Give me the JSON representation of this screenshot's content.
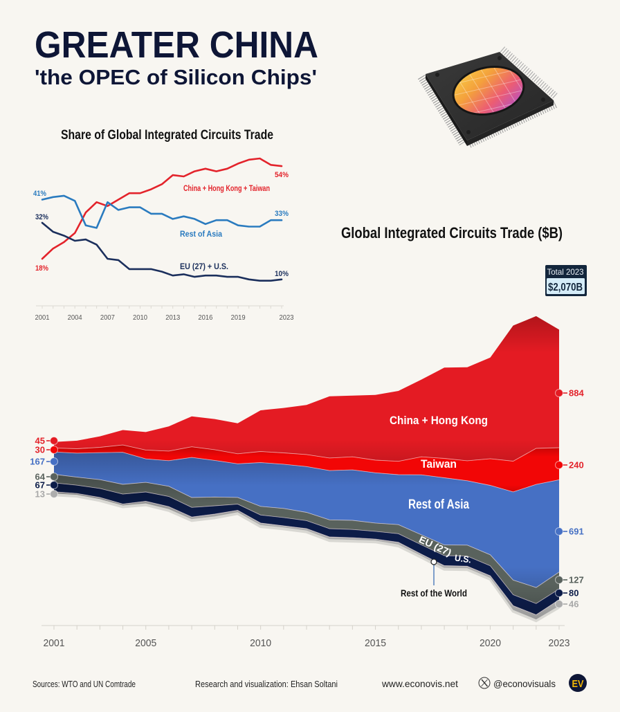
{
  "header": {
    "title": "GREATER CHINA",
    "subtitle": "'the OPEC of Silicon Chips'"
  },
  "chart_data": [
    {
      "type": "line",
      "title": "Share of Global Integrated Circuits Trade",
      "unit": "%",
      "xlabel": "",
      "ylabel": "",
      "ylim": [
        0,
        60
      ],
      "grid": false,
      "x": [
        2001,
        2002,
        2003,
        2004,
        2005,
        2006,
        2007,
        2008,
        2009,
        2010,
        2011,
        2012,
        2013,
        2014,
        2015,
        2016,
        2017,
        2018,
        2019,
        2020,
        2021,
        2022,
        2023
      ],
      "x_tick_years": [
        2001,
        2004,
        2007,
        2010,
        2013,
        2016,
        2019,
        2023
      ],
      "x_tick_labels": [
        "2001",
        "2004",
        "2007",
        "2010",
        "2013",
        "2016",
        "2019",
        "2023"
      ],
      "series": [
        {
          "name": "China + Hong Kong + Taiwan",
          "color": "#e3232b",
          "start_label": "18%",
          "end_label": "54%",
          "values": [
            18,
            22,
            24.5,
            28,
            36,
            40,
            38.5,
            41,
            43.5,
            43.5,
            45,
            47,
            50.5,
            50,
            52,
            53,
            52,
            53,
            55,
            56.5,
            57,
            54.5,
            54
          ]
        },
        {
          "name": "Rest of Asia",
          "color": "#2a7bbf",
          "start_label": "41%",
          "end_label": "33%",
          "values": [
            41,
            42,
            42.5,
            40.5,
            31,
            30,
            40,
            37,
            38,
            38,
            35.5,
            35.5,
            33.5,
            34.5,
            33.5,
            31.5,
            33,
            33,
            31,
            30.5,
            30.5,
            33,
            33
          ]
        },
        {
          "name": "EU (27) + U.S.",
          "color": "#1b2f5c",
          "start_label": "32%",
          "end_label": "10%",
          "values": [
            32,
            28.5,
            27,
            25,
            25.5,
            23.5,
            18,
            17.5,
            14,
            14,
            14,
            13,
            11.5,
            12,
            11,
            11.5,
            11.5,
            11,
            11,
            10,
            9.5,
            9.5,
            10
          ]
        }
      ]
    },
    {
      "type": "area",
      "stacking": "centered",
      "title": "Global Integrated Circuits Trade ($B)",
      "unit": "$B",
      "xlabel": "",
      "ylabel": "",
      "grid": false,
      "x": [
        2001,
        2002,
        2003,
        2004,
        2005,
        2006,
        2007,
        2008,
        2009,
        2010,
        2011,
        2012,
        2013,
        2014,
        2015,
        2016,
        2017,
        2018,
        2019,
        2020,
        2021,
        2022,
        2023
      ],
      "x_tick_years": [
        2001,
        2005,
        2010,
        2015,
        2020,
        2023
      ],
      "x_tick_labels": [
        "2001",
        "2005",
        "2010",
        "2015",
        "2020",
        "2023"
      ],
      "total_label": "Total 2023",
      "total_value": "$2,070B",
      "annotation": "Rest of the World",
      "series": [
        {
          "name": "China + Hong Kong",
          "label": "China + Hong Kong",
          "color": "#e41b23",
          "label_color": "#e3232b",
          "values": [
            45,
            60,
            82,
            112,
            135,
            185,
            228,
            230,
            228,
            308,
            336,
            371,
            462,
            458,
            488,
            527,
            578,
            680,
            700,
            757,
            1016,
            990,
            884
          ]
        },
        {
          "name": "Taiwan",
          "label": "Taiwan",
          "color": "#f20606",
          "label_color": "#e3232b",
          "values": [
            30,
            33,
            40,
            55,
            66,
            72,
            80,
            80,
            75,
            83,
            85,
            90,
            94,
            98,
            95,
            100,
            135,
            145,
            150,
            200,
            230,
            270,
            240
          ]
        },
        {
          "name": "Rest of Asia",
          "label": "Rest of Asia",
          "color": "#4670c4",
          "label_color": "#4670c4",
          "values": [
            167,
            180,
            202,
            240,
            176,
            192,
            300,
            274,
            252,
            328,
            331,
            343,
            369,
            378,
            376,
            374,
            449,
            503,
            482,
            520,
            660,
            772,
            691
          ]
        },
        {
          "name": "EU (27)",
          "label": "EU (27)",
          "color": "#59625d",
          "label_color": "#59625d",
          "values": [
            64,
            60,
            66,
            73,
            72,
            76,
            74,
            66,
            50,
            65,
            68,
            62,
            66,
            68,
            62,
            68,
            75,
            80,
            82,
            82,
            110,
            120,
            127
          ]
        },
        {
          "name": "U.S.",
          "label": "U.S.",
          "color": "#0c1c48",
          "label_color": "#0c1c48",
          "values": [
            67,
            62,
            68,
            74,
            70,
            76,
            72,
            62,
            46,
            60,
            62,
            60,
            62,
            62,
            58,
            64,
            70,
            75,
            76,
            75,
            82,
            84,
            80
          ]
        },
        {
          "name": "Rest of the World",
          "label": "Rest of the World",
          "color": "#adadad",
          "label_color": "#a8a8a8",
          "values": [
            13,
            10,
            12,
            11,
            16,
            19,
            16,
            18,
            14,
            16,
            13,
            14,
            17,
            16,
            11,
            17,
            13,
            17,
            15,
            16,
            32,
            34,
            46
          ]
        }
      ]
    }
  ],
  "footer": {
    "sources": "Sources: WTO and UN Comtrade",
    "credit": "Research and visualization: Ehsan Soltani",
    "website": "www.econovis.net",
    "social_handle": "@econovisuals",
    "social_icon": "x-logo-icon",
    "logo_text": "EV"
  }
}
